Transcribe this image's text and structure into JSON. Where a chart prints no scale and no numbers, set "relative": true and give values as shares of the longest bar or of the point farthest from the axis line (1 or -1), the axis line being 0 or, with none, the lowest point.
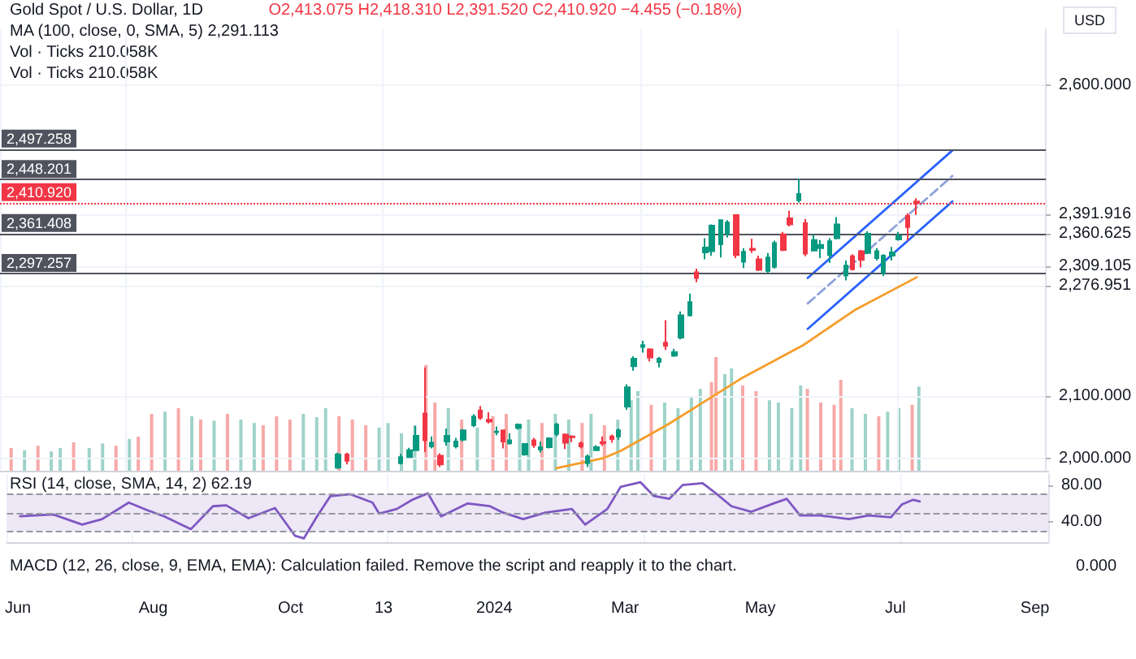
{
  "chart_data": [
    {
      "type": "candlestick",
      "title": "Gold Spot / U.S. Dollar, 1D",
      "subtitle": "O2,413.075 H2,418.310 L2,391.520 C2,410.920 −4.455 (−0.18%)",
      "ylabel": "USD",
      "annotations": [
        "MA (100, close, 0, SMA, 5) 2,291.113",
        "Vol · Ticks 210.058K",
        "Vol · Ticks 210.058K"
      ],
      "colors": [
        "#089981",
        "#f23645",
        "#089981",
        "#089981",
        "#089981",
        "#f23645",
        "#089981",
        "#f23645",
        "#089981",
        "#089981",
        "#089981",
        "#089981",
        "#f23645",
        "#f23645",
        "#089981",
        "#f23645",
        "#089981",
        "#089981",
        "#089981",
        "#f23645",
        "#089981",
        "#089981",
        "#089981",
        "#f23645",
        "#f23645",
        "#f23645",
        "#089981",
        "#089981",
        "#f23645",
        "#f23645",
        "#089981",
        "#089981",
        "#089981",
        "#089981",
        "#f23645",
        "#089981",
        "#f23645",
        "#089981",
        "#089981",
        "#089981",
        "#f23645",
        "#089981",
        "#089981",
        "#089981",
        "#089981",
        "#f23645",
        "#089981",
        "#f23645",
        "#f23645",
        "#089981",
        "#089981",
        "#f23645",
        "#f23645",
        "#089981",
        "#f23645",
        "#089981",
        "#089981",
        "#089981",
        "#089981",
        "#089981",
        "#f23645",
        "#f23645",
        "#089981",
        "#089981",
        "#089981",
        "#089981",
        "#089981",
        "#f23645",
        "#f23645"
      ],
      "x": [
        "2023-10-26",
        "2023-10-30",
        "2023-11-23",
        "2023-11-27",
        "2023-11-30",
        "2023-12-04",
        "2023-12-07",
        "2023-12-11",
        "2023-12-14",
        "2023-12-18",
        "2023-12-21",
        "2023-12-26",
        "2023-12-29",
        "2024-01-02",
        "2024-01-05",
        "2024-01-08",
        "2024-01-11",
        "2024-01-15",
        "2024-01-18",
        "2024-01-22",
        "2024-01-25",
        "2024-01-29",
        "2024-02-01",
        "2024-02-05",
        "2024-02-08",
        "2024-02-12",
        "2024-02-15",
        "2024-02-19",
        "2024-02-22",
        "2024-02-26",
        "2024-02-29",
        "2024-03-04",
        "2024-03-07",
        "2024-03-11",
        "2024-03-14",
        "2024-03-18",
        "2024-03-21",
        "2024-03-25",
        "2024-03-28",
        "2024-04-01",
        "2024-04-04",
        "2024-04-08",
        "2024-04-11",
        "2024-04-15",
        "2024-04-18",
        "2024-04-22",
        "2024-04-25",
        "2024-04-29",
        "2024-05-02",
        "2024-05-06",
        "2024-05-09",
        "2024-05-13",
        "2024-05-16",
        "2024-05-20",
        "2024-05-23",
        "2024-05-27",
        "2024-05-30",
        "2024-06-03",
        "2024-06-06",
        "2024-06-10",
        "2024-06-13",
        "2024-06-17",
        "2024-06-20",
        "2024-06-24",
        "2024-06-27",
        "2024-07-01",
        "2024-07-04",
        "2024-07-08",
        "2024-07-12"
      ],
      "ohlc": [
        [
          1985,
          2009,
          1983,
          2006
        ],
        [
          2006,
          2009,
          1990,
          1996
        ],
        [
          1992,
          2007,
          1990,
          2002
        ],
        [
          2002,
          2017,
          2001,
          2013
        ],
        [
          2013,
          2052,
          2012,
          2036
        ],
        [
          2072,
          2146,
          2010,
          2029
        ],
        [
          2019,
          2035,
          2016,
          2025
        ],
        [
          2004,
          2008,
          1986,
          1990
        ],
        [
          2027,
          2048,
          2020,
          2036
        ],
        [
          2019,
          2033,
          2016,
          2027
        ],
        [
          2030,
          2047,
          2027,
          2045
        ],
        [
          2053,
          2071,
          2050,
          2067
        ],
        [
          2077,
          2084,
          2062,
          2065
        ],
        [
          2062,
          2074,
          2056,
          2059
        ],
        [
          2042,
          2051,
          2037,
          2043
        ],
        [
          2045,
          2046,
          2016,
          2027
        ],
        [
          2024,
          2040,
          2022,
          2029
        ],
        [
          2049,
          2056,
          2046,
          2054
        ],
        [
          2006,
          2024,
          2004,
          2023
        ],
        [
          2029,
          2033,
          2017,
          2021
        ],
        [
          2014,
          2027,
          2009,
          2018
        ],
        [
          2018,
          2034,
          2016,
          2032
        ],
        [
          2039,
          2057,
          2035,
          2054
        ],
        [
          2038,
          2040,
          2015,
          2025
        ],
        [
          2035,
          2037,
          2026,
          2034
        ],
        [
          2024,
          2027,
          2016,
          2019
        ],
        [
          1992,
          2006,
          1986,
          2003
        ],
        [
          2013,
          2021,
          2012,
          2018
        ],
        [
          2026,
          2035,
          2020,
          2024
        ],
        [
          2035,
          2038,
          2025,
          2031
        ],
        [
          2035,
          2048,
          2030,
          2045
        ],
        [
          2083,
          2119,
          2078,
          2114
        ],
        [
          2148,
          2164,
          2141,
          2160
        ],
        [
          2179,
          2189,
          2170,
          2182
        ],
        [
          2175,
          2177,
          2156,
          2162
        ],
        [
          2155,
          2163,
          2146,
          2160
        ],
        [
          2186,
          2222,
          2174,
          2181
        ],
        [
          2165,
          2176,
          2163,
          2171
        ],
        [
          2194,
          2236,
          2191,
          2230
        ],
        [
          2230,
          2265,
          2228,
          2251
        ],
        [
          2299,
          2305,
          2283,
          2290
        ],
        [
          2331,
          2354,
          2320,
          2339
        ],
        [
          2333,
          2376,
          2326,
          2374
        ],
        [
          2344,
          2384,
          2323,
          2383
        ],
        [
          2361,
          2383,
          2355,
          2379
        ],
        [
          2391,
          2392,
          2322,
          2327
        ],
        [
          2316,
          2338,
          2306,
          2332
        ],
        [
          2337,
          2353,
          2330,
          2335
        ],
        [
          2320,
          2326,
          2301,
          2303
        ],
        [
          2301,
          2330,
          2298,
          2323
        ],
        [
          2308,
          2350,
          2305,
          2346
        ],
        [
          2360,
          2364,
          2333,
          2335
        ],
        [
          2386,
          2398,
          2373,
          2376
        ],
        [
          2415,
          2450,
          2411,
          2425
        ],
        [
          2378,
          2385,
          2325,
          2329
        ],
        [
          2334,
          2360,
          2333,
          2351
        ],
        [
          2338,
          2351,
          2322,
          2343
        ],
        [
          2327,
          2354,
          2314,
          2349
        ],
        [
          2354,
          2388,
          2352,
          2376
        ],
        [
          2294,
          2318,
          2286,
          2310
        ],
        [
          2325,
          2328,
          2302,
          2304
        ],
        [
          2333,
          2335,
          2307,
          2319
        ],
        [
          2330,
          2365,
          2328,
          2361
        ],
        [
          2322,
          2338,
          2318,
          2333
        ],
        [
          2298,
          2328,
          2293,
          2326
        ],
        [
          2326,
          2340,
          2318,
          2331
        ],
        [
          2352,
          2364,
          2350,
          2358
        ],
        [
          2390,
          2394,
          2350,
          2372
        ],
        [
          2413.075,
          2418.31,
          2391.52,
          2410.92
        ]
      ],
      "series": [
        {
          "type": "line",
          "color": "#f59d2a",
          "x": [
            "2024-02-01",
            "2024-02-22",
            "2024-03-01",
            "2024-03-22",
            "2024-04-24",
            "2024-05-22",
            "2024-06-14",
            "2024-07-12"
          ],
          "values": [
            1984,
            2000,
            2012,
            2054,
            2128,
            2182,
            2238,
            2291.113
          ]
        },
        {
          "type": "line",
          "color": "#2962ff",
          "x": [
            "2024-05-24",
            "2024-07-28"
          ],
          "values": [
            2290,
            2495
          ]
        },
        {
          "type": "line",
          "color": "#8fa3d9",
          "line_style": "dashed",
          "x": [
            "2024-05-24",
            "2024-07-28"
          ],
          "values": [
            2249,
            2454
          ]
        },
        {
          "type": "line",
          "color": "#2962ff",
          "x": [
            "2024-05-24",
            "2024-07-28"
          ],
          "values": [
            2208,
            2413
          ]
        }
      ],
      "ref_lines": [
        {
          "axis": "y",
          "value": 2497.258,
          "label": "2,497.258",
          "color": "#50535e"
        },
        {
          "axis": "y",
          "value": 2448.201,
          "label": "2,448.201",
          "color": "#50535e"
        },
        {
          "axis": "y",
          "value": 2410.92,
          "label": "2,410.920",
          "color": "#f23645",
          "line_style": "dotted"
        },
        {
          "axis": "y",
          "value": 2361.408,
          "label": "2,361.408",
          "color": "#50535e"
        },
        {
          "axis": "y",
          "value": 2297.257,
          "label": "2,297.257",
          "color": "#50535e"
        }
      ],
      "xlim": [
        "2023-05-27",
        "2024-09-08"
      ],
      "xticks": [
        {
          "value": "2023-06-01",
          "label": null
        },
        {
          "value": "2023-08-01",
          "label": null
        },
        {
          "value": "2023-10-02",
          "label": null
        },
        {
          "value": "2023-11-13",
          "label": null
        },
        {
          "value": "2024-01-02",
          "label": null
        },
        {
          "value": "2024-03-01",
          "label": null
        },
        {
          "value": "2024-05-01",
          "label": null
        },
        {
          "value": "2024-07-01",
          "label": null
        },
        {
          "value": "2024-09-02",
          "label": null
        }
      ],
      "ylim": [
        1980,
        2690
      ],
      "yticks": [
        {
          "value": 2000,
          "label": "2,000.000"
        },
        {
          "value": 2100,
          "label": "2,100.000"
        },
        {
          "value": 2276.951,
          "label": "2,276.951"
        },
        {
          "value": 2309.105,
          "label": "2,309.105"
        },
        {
          "value": 2360.625,
          "label": "2,360.625"
        },
        {
          "value": 2391.916,
          "label": "2,391.916"
        },
        {
          "value": 2600,
          "label": "2,600.000"
        }
      ],
      "grid": true,
      "tick_labels": "y"
    },
    {
      "type": "bar",
      "relative": true,
      "tick_labels": false,
      "x": [
        "2023-06-01",
        "2023-06-07",
        "2023-06-13",
        "2023-06-19",
        "2023-06-23",
        "2023-06-29",
        "2023-07-06",
        "2023-07-12",
        "2023-07-18",
        "2023-07-24",
        "2023-07-28",
        "2023-08-03",
        "2023-08-09",
        "2023-08-15",
        "2023-08-21",
        "2023-08-25",
        "2023-08-31",
        "2023-09-06",
        "2023-09-12",
        "2023-09-18",
        "2023-09-22",
        "2023-09-28",
        "2023-10-04",
        "2023-10-10",
        "2023-10-16",
        "2023-10-20",
        "2023-10-26",
        "2023-11-01",
        "2023-11-07",
        "2023-11-13",
        "2023-11-17",
        "2023-11-23",
        "2023-11-29",
        "2023-12-04",
        "2023-12-08",
        "2023-12-14",
        "2023-12-20",
        "2023-12-27",
        "2024-01-03",
        "2024-01-09",
        "2024-01-15",
        "2024-01-19",
        "2024-01-25",
        "2024-01-31",
        "2024-02-06",
        "2024-02-12",
        "2024-02-16",
        "2024-02-22",
        "2024-02-28",
        "2024-03-05",
        "2024-03-08",
        "2024-03-14",
        "2024-03-20",
        "2024-03-26",
        "2024-04-01",
        "2024-04-05",
        "2024-04-10",
        "2024-04-12",
        "2024-04-16",
        "2024-04-19",
        "2024-04-24",
        "2024-04-30",
        "2024-05-06",
        "2024-05-10",
        "2024-05-16",
        "2024-05-20",
        "2024-05-23",
        "2024-05-29",
        "2024-06-04",
        "2024-06-07",
        "2024-06-12",
        "2024-06-18",
        "2024-06-24",
        "2024-06-28",
        "2024-07-03",
        "2024-07-09",
        "2024-07-12"
      ],
      "values": [
        0.2,
        0.18,
        0.22,
        0.17,
        0.2,
        0.25,
        0.2,
        0.24,
        0.22,
        0.28,
        0.3,
        0.5,
        0.52,
        0.55,
        0.48,
        0.45,
        0.44,
        0.5,
        0.45,
        0.42,
        0.4,
        0.48,
        0.45,
        0.5,
        0.47,
        0.55,
        0.48,
        0.45,
        0.4,
        0.38,
        0.42,
        0.33,
        0.4,
        0.93,
        0.6,
        0.55,
        0.45,
        0.38,
        0.48,
        0.5,
        0.4,
        0.45,
        0.42,
        0.5,
        0.45,
        0.42,
        0.5,
        0.4,
        0.45,
        0.62,
        0.7,
        0.58,
        0.6,
        0.55,
        0.65,
        0.72,
        0.78,
        1,
        0.85,
        0.9,
        0.75,
        0.7,
        0.62,
        0.6,
        0.55,
        0.75,
        0.72,
        0.6,
        0.58,
        0.8,
        0.55,
        0.5,
        0.48,
        0.52,
        0.55,
        0.58,
        0.74
      ],
      "colors": [
        "#f7a9a7",
        "#9ed3c9",
        "#f7a9a7",
        "#9ed3c9",
        "#9ed3c9",
        "#f7a9a7",
        "#9ed3c9",
        "#9ed3c9",
        "#f7a9a7",
        "#9ed3c9",
        "#f7a9a7",
        "#f7a9a7",
        "#9ed3c9",
        "#f7a9a7",
        "#9ed3c9",
        "#f7a9a7",
        "#9ed3c9",
        "#f7a9a7",
        "#9ed3c9",
        "#9ed3c9",
        "#f7a9a7",
        "#f7a9a7",
        "#f7a9a7",
        "#9ed3c9",
        "#9ed3c9",
        "#9ed3c9",
        "#f7a9a7",
        "#f7a9a7",
        "#f7a9a7",
        "#9ed3c9",
        "#9ed3c9",
        "#9ed3c9",
        "#9ed3c9",
        "#f7a9a7",
        "#f7a9a7",
        "#9ed3c9",
        "#f7a9a7",
        "#9ed3c9",
        "#f7a9a7",
        "#f7a9a7",
        "#9ed3c9",
        "#9ed3c9",
        "#f7a9a7",
        "#9ed3c9",
        "#9ed3c9",
        "#f7a9a7",
        "#9ed3c9",
        "#f7a9a7",
        "#9ed3c9",
        "#9ed3c9",
        "#9ed3c9",
        "#f7a9a7",
        "#9ed3c9",
        "#9ed3c9",
        "#9ed3c9",
        "#9ed3c9",
        "#f7a9a7",
        "#f7a9a7",
        "#9ed3c9",
        "#9ed3c9",
        "#f7a9a7",
        "#f7a9a7",
        "#9ed3c9",
        "#9ed3c9",
        "#9ed3c9",
        "#9ed3c9",
        "#f7a9a7",
        "#f7a9a7",
        "#f7a9a7",
        "#f7a9a7",
        "#9ed3c9",
        "#9ed3c9",
        "#f7a9a7",
        "#9ed3c9",
        "#9ed3c9",
        "#f7a9a7",
        "#9ed3c9"
      ],
      "xlim": [
        "2023-05-27",
        "2024-09-08"
      ]
    },
    {
      "type": "line",
      "annotations": [
        "RSI (14, close, SMA, 14, 2) 62.19"
      ],
      "marker": "none",
      "x": [
        "2023-06-02",
        "2023-06-17",
        "2023-06-30",
        "2023-07-09",
        "2023-07-21",
        "2023-07-29",
        "2023-08-06",
        "2023-08-18",
        "2023-08-28",
        "2023-09-03",
        "2023-09-13",
        "2023-09-25",
        "2023-10-04",
        "2023-10-08",
        "2023-10-14",
        "2023-10-20",
        "2023-10-29",
        "2023-11-08",
        "2023-11-11",
        "2023-11-19",
        "2023-11-26",
        "2023-12-03",
        "2023-12-09",
        "2023-12-21",
        "2023-12-31",
        "2024-01-06",
        "2024-01-15",
        "2024-01-25",
        "2024-02-06",
        "2024-02-12",
        "2024-02-22",
        "2024-02-28",
        "2024-03-08",
        "2024-03-14",
        "2024-03-21",
        "2024-03-27",
        "2024-04-05",
        "2024-04-11",
        "2024-04-18",
        "2024-04-27",
        "2024-05-07",
        "2024-05-13",
        "2024-05-19",
        "2024-05-28",
        "2024-06-10",
        "2024-06-19",
        "2024-06-29",
        "2024-07-04",
        "2024-07-09",
        "2024-07-12"
      ],
      "series": [
        {
          "color": "#7e57c2",
          "values": [
            46,
            48,
            37,
            43,
            61,
            53,
            46,
            32,
            57,
            58,
            44,
            55,
            25,
            22,
            46,
            68,
            70,
            61,
            49,
            54,
            64,
            71,
            46,
            60,
            57,
            50,
            43,
            50,
            54,
            37,
            54,
            78,
            83,
            68,
            65,
            80,
            82,
            71,
            57,
            51,
            60,
            65,
            47,
            47,
            43,
            47,
            45,
            59,
            64,
            62.19
          ]
        }
      ],
      "ref_lines": [
        {
          "axis": "y",
          "value": 70,
          "color": "#9598a1",
          "line_style": "dashed"
        },
        {
          "axis": "y",
          "value": 50,
          "color": "#9598a1",
          "line_style": "dashed"
        },
        {
          "axis": "y",
          "value": 30,
          "color": "#9598a1",
          "line_style": "dashed"
        }
      ],
      "bands": [
        {
          "axis": "y",
          "from": 30,
          "to": 70,
          "color": "#ede7f6"
        }
      ],
      "xlim": [
        "2023-05-27",
        "2024-09-08"
      ],
      "xticks": [
        {
          "value": "2023-06-01",
          "label": "Jun"
        },
        {
          "value": "2023-08-01",
          "label": "Aug"
        },
        {
          "value": "2023-10-02",
          "label": "Oct"
        },
        {
          "value": "2023-11-13",
          "label": "13"
        },
        {
          "value": "2024-01-02",
          "label": "2024"
        },
        {
          "value": "2024-03-01",
          "label": "Mar"
        },
        {
          "value": "2024-05-01",
          "label": "May"
        },
        {
          "value": "2024-07-01",
          "label": "Jul"
        },
        {
          "value": "2024-09-02",
          "label": "Sep"
        }
      ],
      "ylim": [
        18,
        92
      ],
      "yticks": [
        {
          "value": 40,
          "label": "40.00"
        },
        {
          "value": 80,
          "label": "80.00"
        }
      ],
      "grid": "x"
    },
    {
      "type": "other",
      "annotations": [
        "MACD (12, 26, close, 9, EMA, EMA): Calculation failed. Remove the script and reapply it to the chart.",
        "0.000"
      ]
    }
  ]
}
